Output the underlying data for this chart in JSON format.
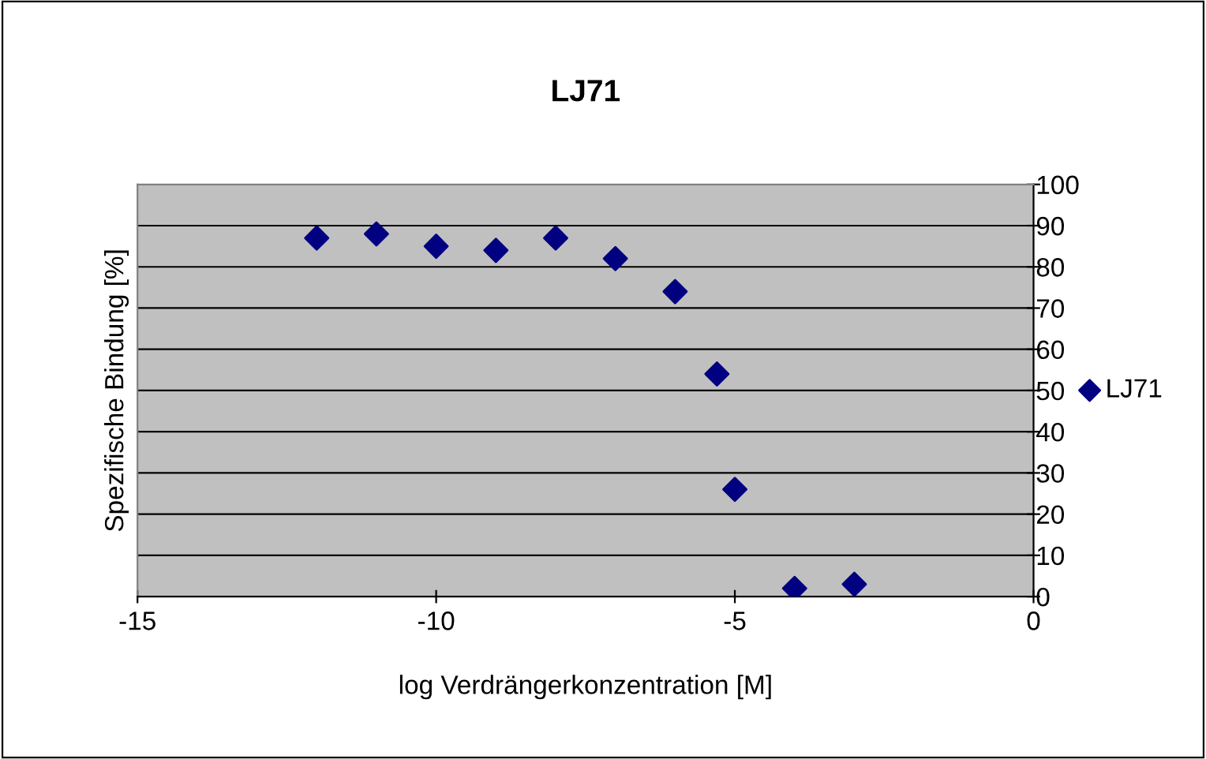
{
  "chart_data": {
    "type": "scatter",
    "title": "LJ71",
    "xlabel": "log Verdrängerkonzentration [M]",
    "ylabel": "Spezifische Bindung [%]",
    "x": [
      -12,
      -11,
      -10,
      -9,
      -8,
      -7,
      -6,
      -5.3,
      -5,
      -4,
      -3
    ],
    "series": [
      {
        "name": "LJ71",
        "color": "#000080",
        "values": [
          87,
          88,
          85,
          84,
          87,
          82,
          74,
          54,
          26,
          2,
          3
        ]
      }
    ],
    "xlim": [
      -15,
      0
    ],
    "xticks": [
      -15,
      -10,
      -5,
      0
    ],
    "ylim": [
      0,
      100
    ],
    "yticks": [
      0,
      10,
      20,
      30,
      40,
      50,
      60,
      70,
      80,
      90,
      100
    ],
    "grid": "y",
    "legend": "right",
    "marker": "diamond"
  }
}
